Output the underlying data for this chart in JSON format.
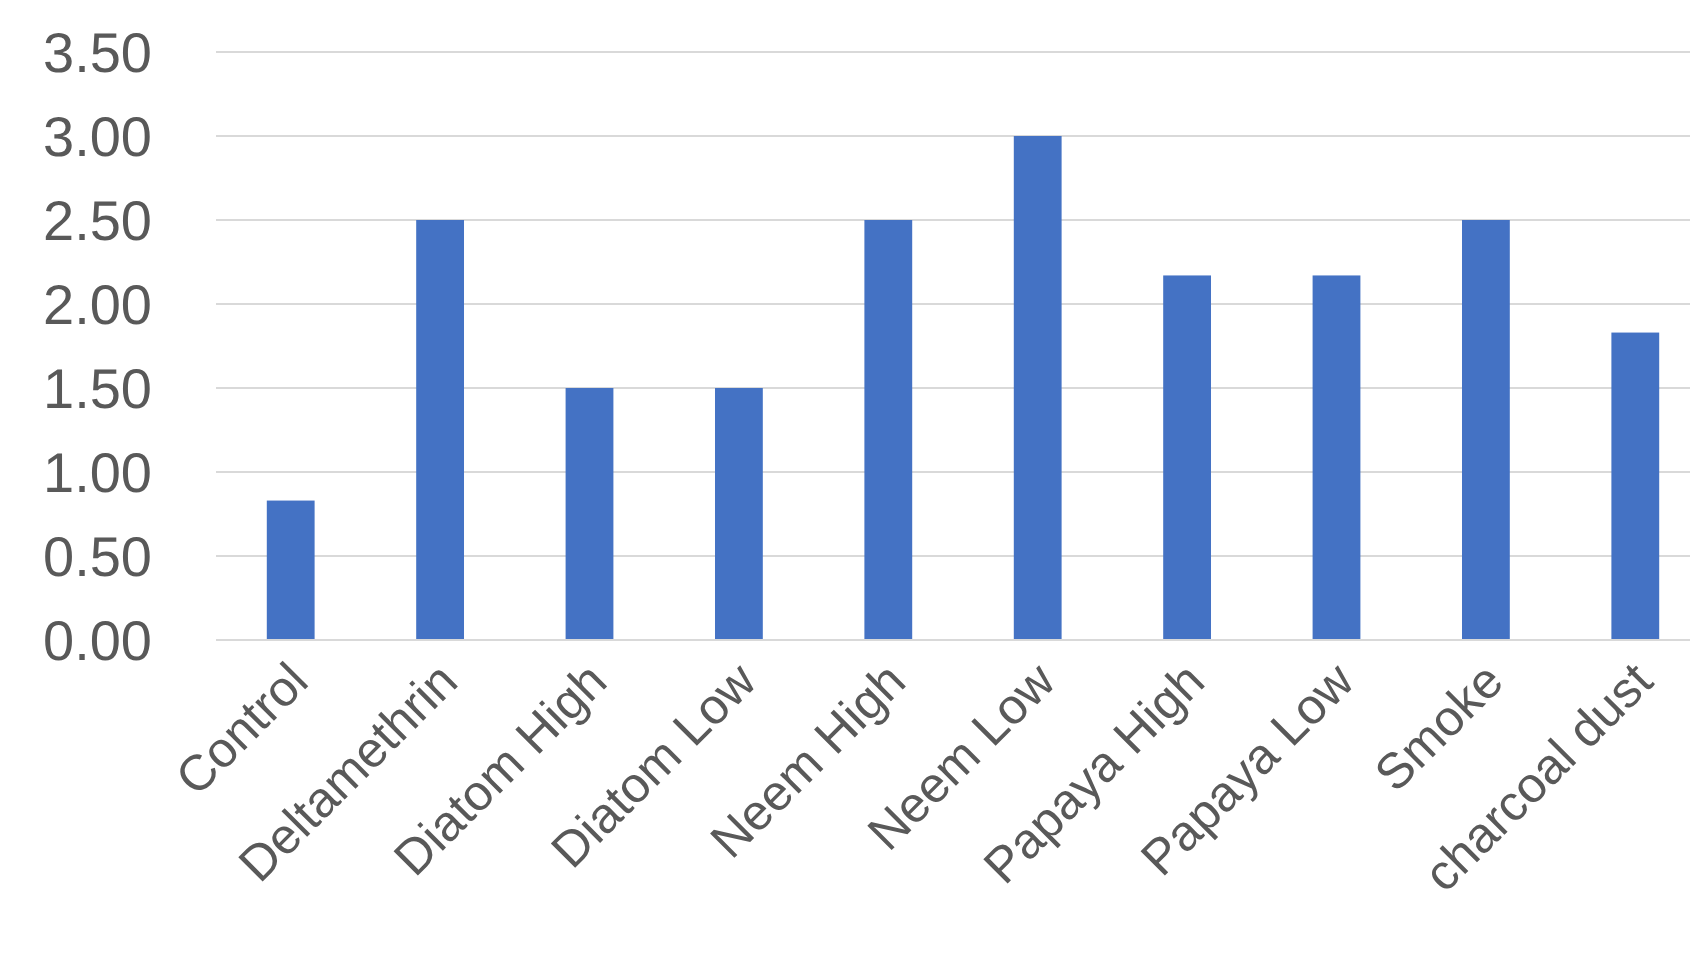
{
  "chart_data": {
    "type": "bar",
    "categories": [
      "Control",
      "Deltamethrin",
      "Diatom High",
      "Diatom Low",
      "Neem High",
      "Neem Low",
      "Papaya High",
      "Papaya Low",
      "Smoke",
      "charcoal dust"
    ],
    "values": [
      0.83,
      2.5,
      1.5,
      1.5,
      2.5,
      3.0,
      2.17,
      2.17,
      2.5,
      1.83
    ],
    "color": "#4472c4",
    "ylim": [
      0,
      3.5
    ],
    "yticks": [
      {
        "value": 0,
        "label": "0.00"
      },
      {
        "value": 0.5,
        "label": "0.50"
      },
      {
        "value": 1,
        "label": "1.00"
      },
      {
        "value": 1.5,
        "label": "1.50"
      },
      {
        "value": 2,
        "label": "2.00"
      },
      {
        "value": 2.5,
        "label": "2.50"
      },
      {
        "value": 3,
        "label": "3.00"
      },
      {
        "value": 3.5,
        "label": "3.50"
      }
    ],
    "grid": true
  }
}
